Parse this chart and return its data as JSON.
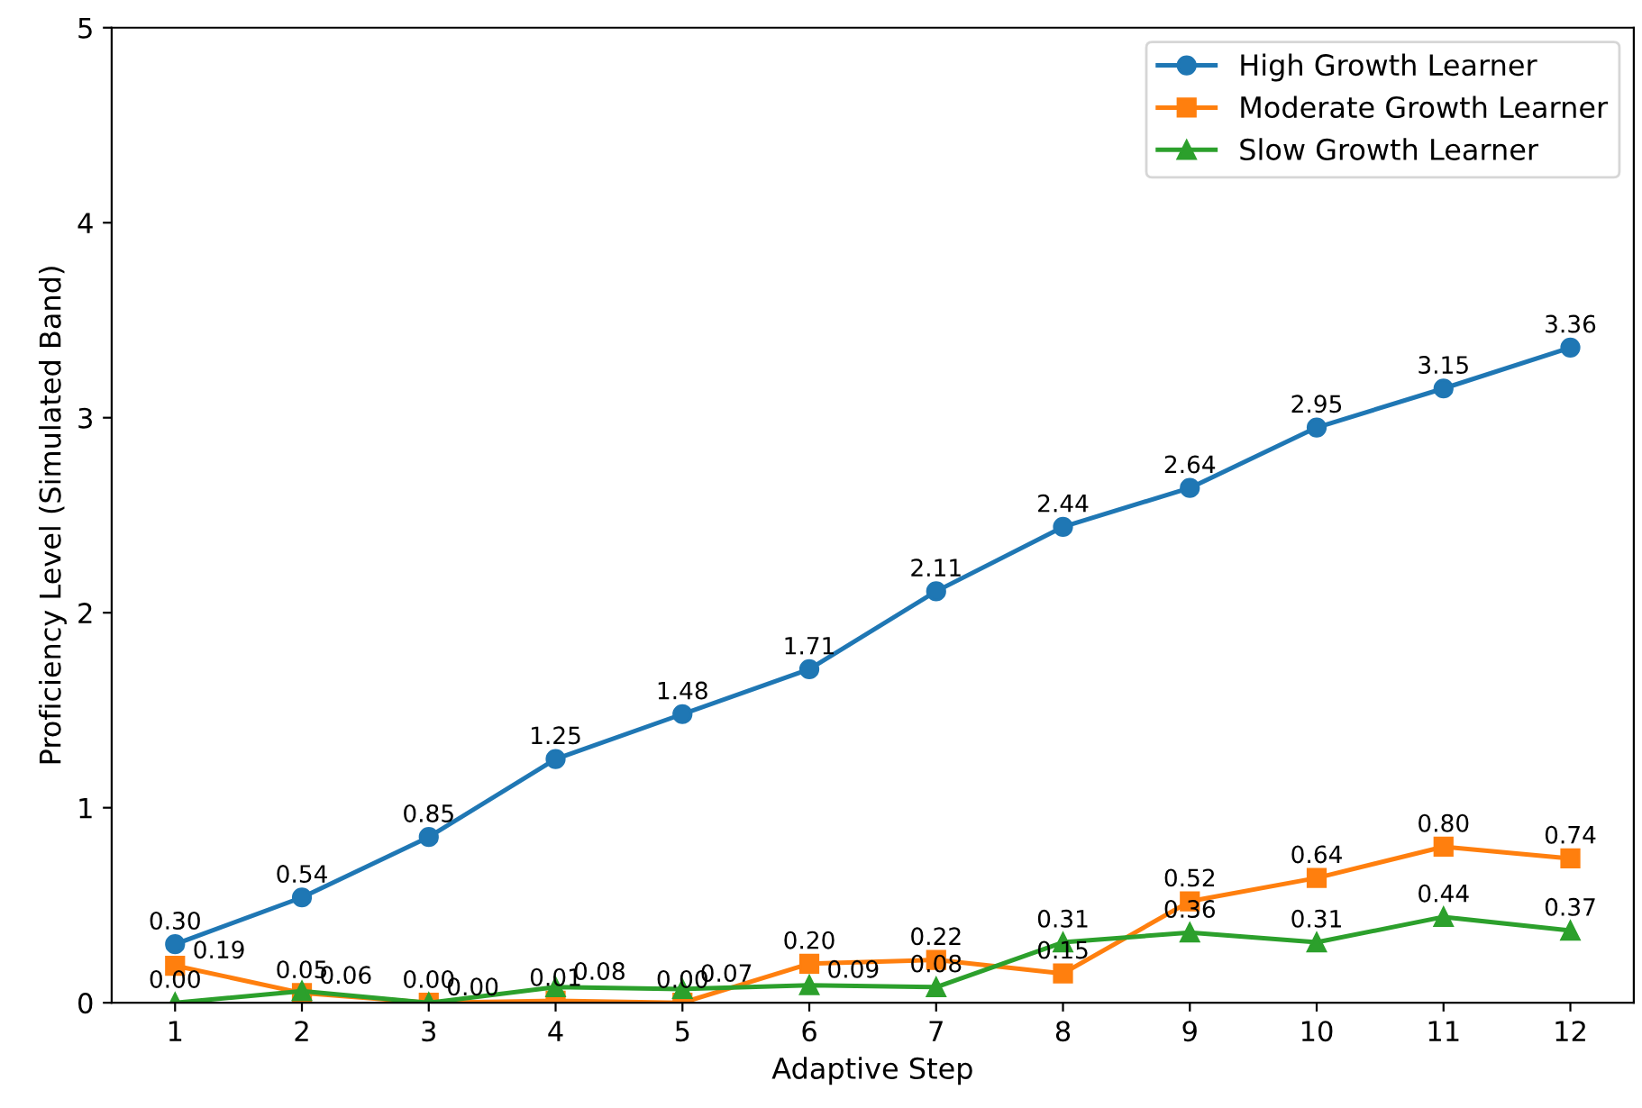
{
  "chart_data": {
    "type": "line",
    "xlabel": "Adaptive Step",
    "ylabel": "Proficiency Level (Simulated Band)",
    "x": [
      1,
      2,
      3,
      4,
      5,
      6,
      7,
      8,
      9,
      10,
      11,
      12
    ],
    "series": [
      {
        "name": "High Growth Learner",
        "color": "#1f77b4",
        "marker": "circle",
        "values": [
          0.3,
          0.54,
          0.85,
          1.25,
          1.48,
          1.71,
          2.11,
          2.44,
          2.64,
          2.95,
          3.15,
          3.36
        ],
        "value_labels": [
          "0.30",
          "0.54",
          "0.85",
          "1.25",
          "1.48",
          "1.71",
          "2.11",
          "2.44",
          "2.64",
          "2.95",
          "3.15",
          "3.36"
        ]
      },
      {
        "name": "Moderate Growth Learner",
        "color": "#ff7f0e",
        "marker": "square",
        "values": [
          0.19,
          0.05,
          0.0,
          0.01,
          0.0,
          0.2,
          0.22,
          0.15,
          0.52,
          0.64,
          0.8,
          0.74
        ],
        "value_labels": [
          "0.19",
          "0.05",
          "0.00",
          "0.01",
          "0.00",
          "0.20",
          "0.22",
          "0.15",
          "0.52",
          "0.64",
          "0.80",
          "0.74"
        ]
      },
      {
        "name": "Slow Growth Learner",
        "color": "#2ca02c",
        "marker": "triangle",
        "values": [
          0.0,
          0.06,
          0.0,
          0.08,
          0.07,
          0.09,
          0.08,
          0.31,
          0.36,
          0.31,
          0.44,
          0.37
        ],
        "value_labels": [
          "0.00",
          "0.06",
          "0.00",
          "0.08",
          "0.07",
          "0.09",
          "0.08",
          "0.31",
          "0.36",
          "0.31",
          "0.44",
          "0.37"
        ]
      }
    ],
    "xlim": [
      0.5,
      12.5
    ],
    "xticks": [
      1,
      2,
      3,
      4,
      5,
      6,
      7,
      8,
      9,
      10,
      11,
      12
    ],
    "ylim": [
      0,
      5
    ],
    "yticks": [
      0,
      1,
      2,
      3,
      4,
      5
    ],
    "grid": false,
    "legend": "top right",
    "line_style": "solid"
  }
}
